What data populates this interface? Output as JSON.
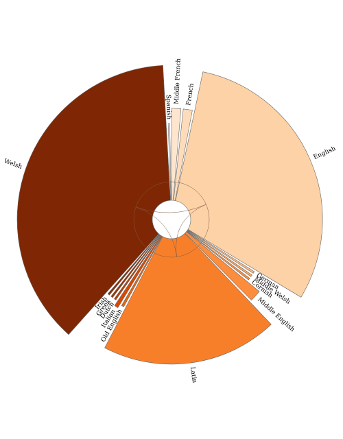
{
  "chart_data": {
    "type": "pie",
    "style": "exploded radial pie with per-slice radii and curved inner link lines",
    "slices": [
      {
        "label": "Spanish",
        "value": 0.4,
        "color": "#fff5eb"
      },
      {
        "label": "Middle French",
        "value": 2.0,
        "color": "#fee6ce"
      },
      {
        "label": "French",
        "value": 2.0,
        "color": "#fedcbb"
      },
      {
        "label": "English",
        "value": 46.0,
        "color": "#fdd2a6"
      },
      {
        "label": "German",
        "value": 0.5,
        "color": "#fdbb84"
      },
      {
        "label": "Middle Welsh",
        "value": 0.5,
        "color": "#fda761"
      },
      {
        "label": "Cornish",
        "value": 0.5,
        "color": "#fd9243"
      },
      {
        "label": "Middle English",
        "value": 2.5,
        "color": "#fd8d3c"
      },
      {
        "label": "Latin",
        "value": 30.0,
        "color": "#f87f2a"
      },
      {
        "label": "Old English",
        "value": 0.6,
        "color": "#e8650f"
      },
      {
        "label": "Italian",
        "value": 0.9,
        "color": "#d94801"
      },
      {
        "label": "Dutch",
        "value": 0.5,
        "color": "#b83e04"
      },
      {
        "label": "Greek",
        "value": 0.5,
        "color": "#9a3504"
      },
      {
        "label": "Irish",
        "value": 0.5,
        "color": "#8b3004"
      },
      {
        "label": "Welsh",
        "value": 57.0,
        "color": "#7f2704"
      }
    ],
    "legend": "none",
    "title": ""
  }
}
